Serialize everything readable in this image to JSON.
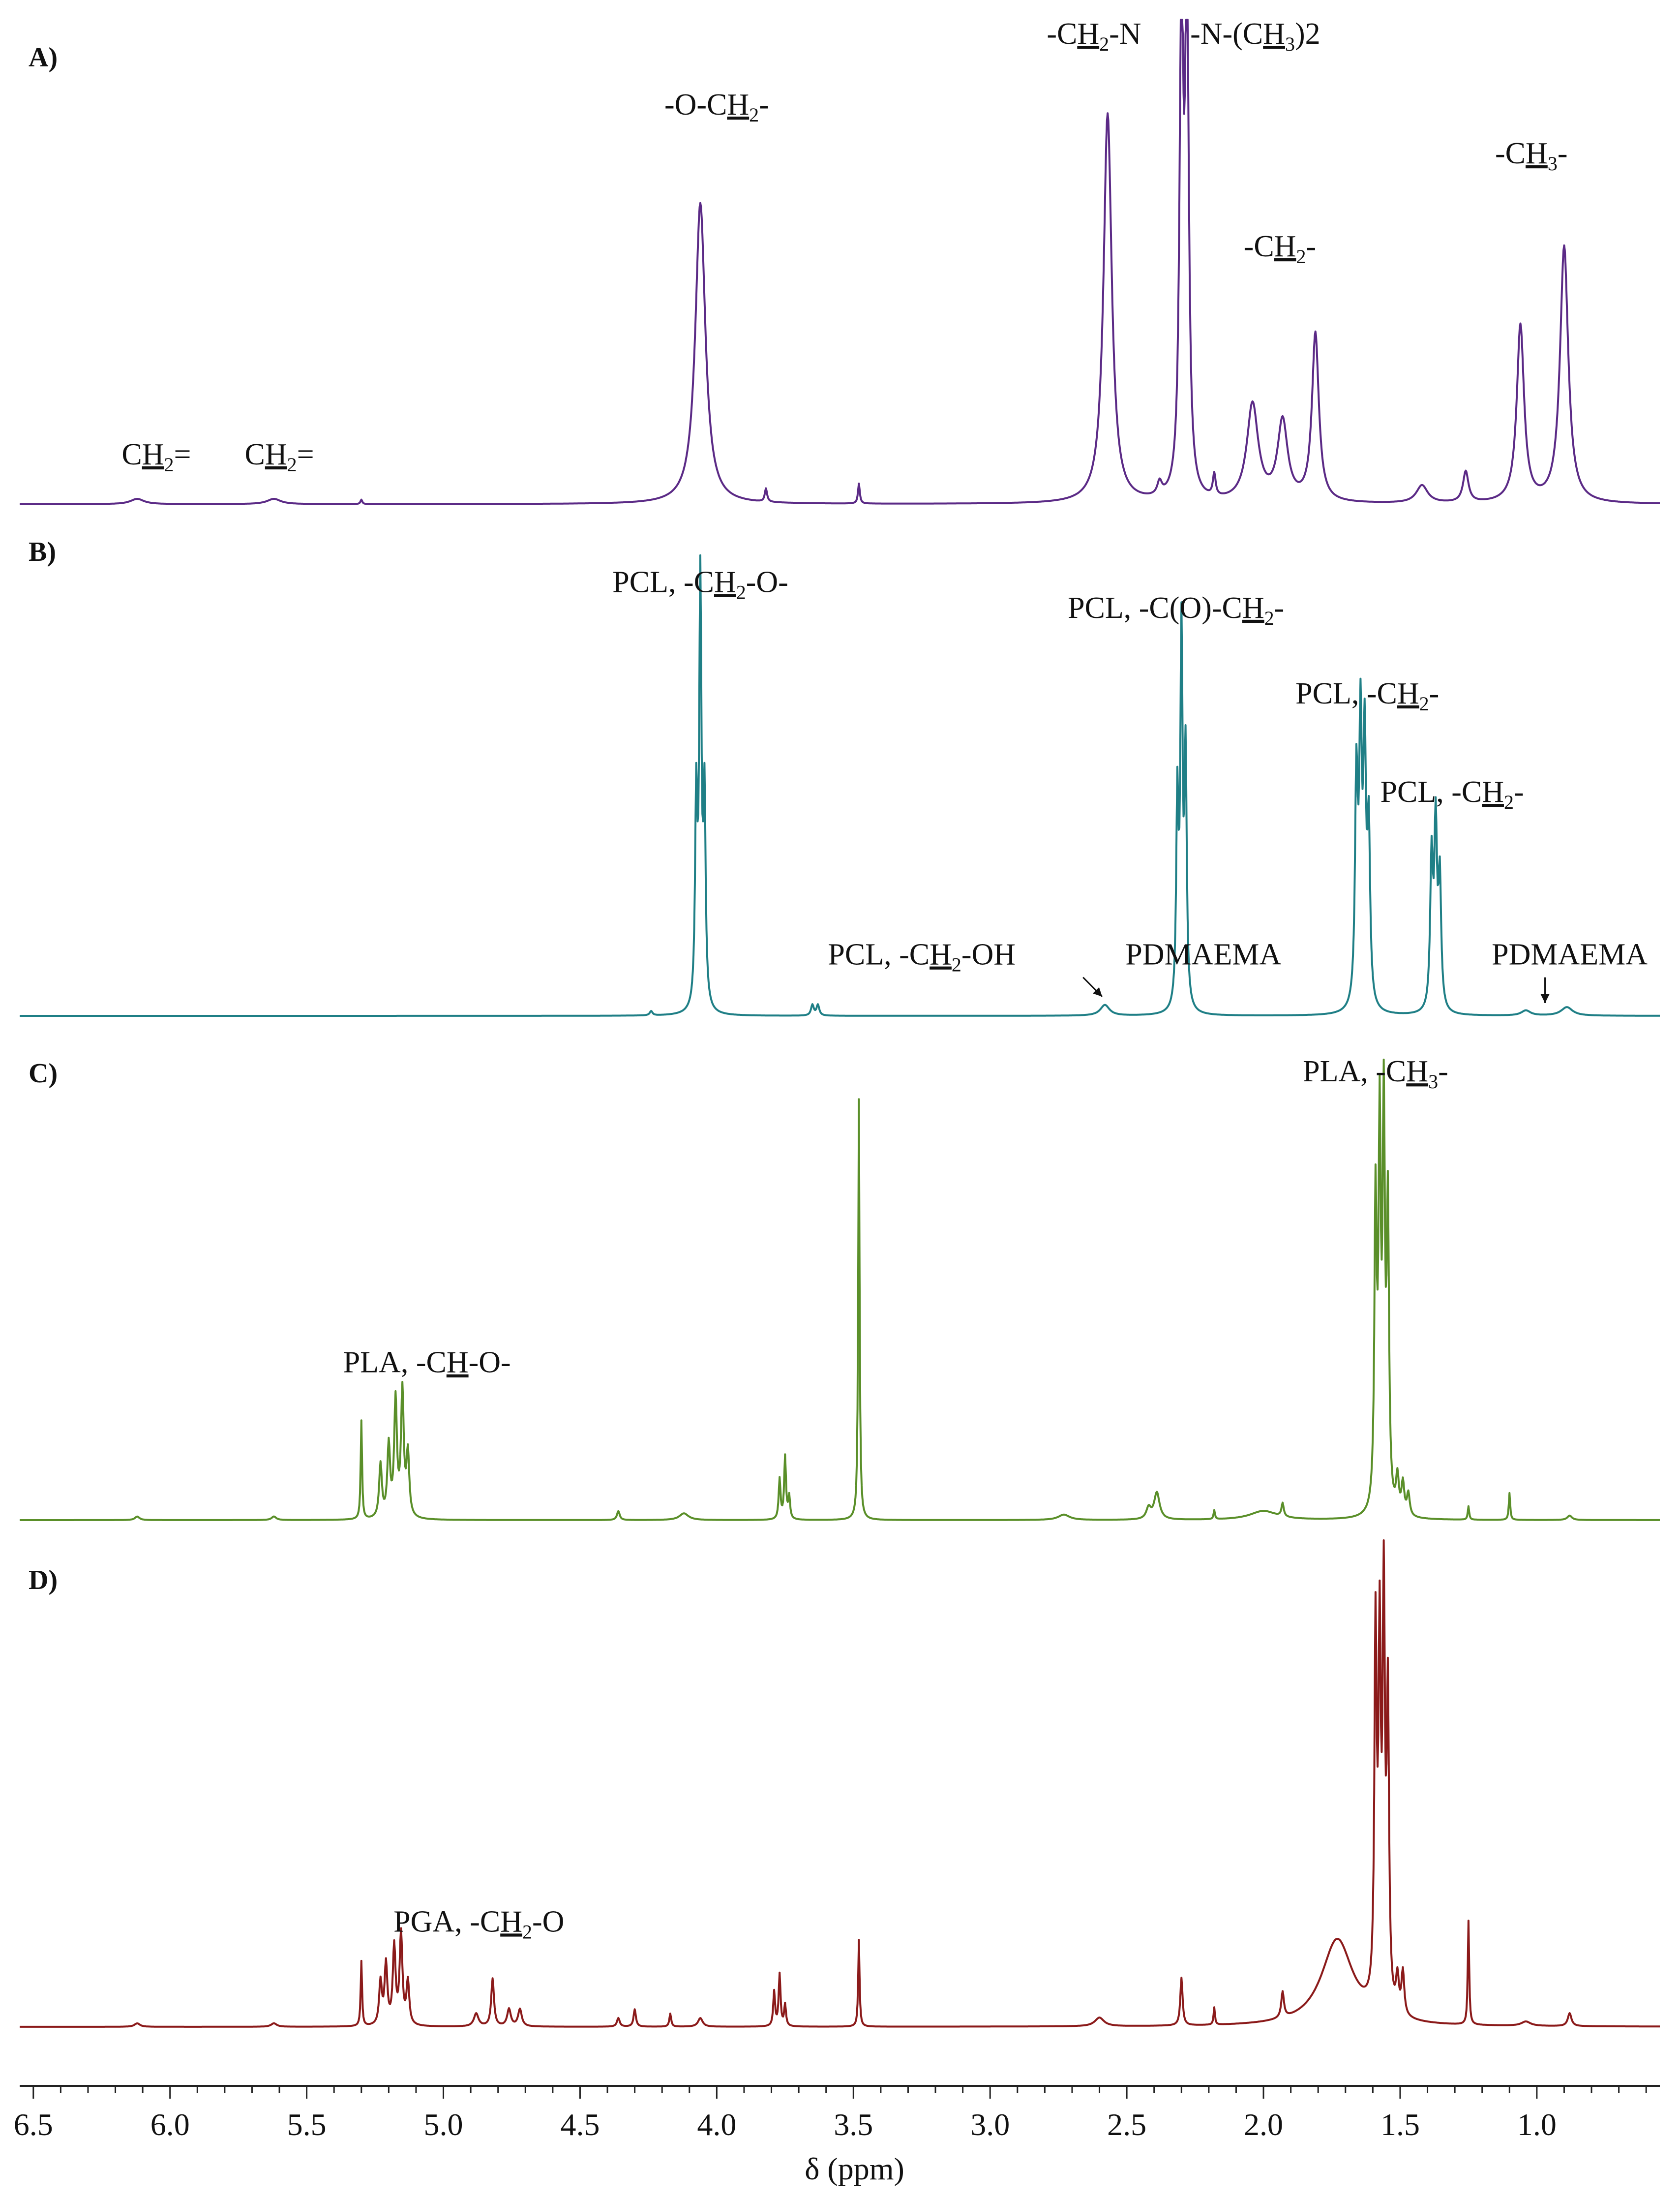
{
  "chart_data": {
    "type": "line",
    "x_axis": {
      "label": "δ (ppm)",
      "range": [
        6.55,
        0.55
      ],
      "reversed": true,
      "ticks": [
        "6.5",
        "6.0",
        "5.5",
        "5.0",
        "4.5",
        "4.0",
        "3.5",
        "3.0",
        "2.5",
        "2.0",
        "1.5",
        "1.0"
      ],
      "tick_values": [
        6.5,
        6.0,
        5.5,
        5.0,
        4.5,
        4.0,
        3.5,
        3.0,
        2.5,
        2.0,
        1.5,
        1.0
      ]
    },
    "grid": false,
    "legend": "none",
    "series": [
      {
        "panel": "A)",
        "color": "#5b2a86",
        "peaks": [
          {
            "ppm": 6.12,
            "height": 0.012,
            "width": 0.03
          },
          {
            "ppm": 5.62,
            "height": 0.012,
            "width": 0.03
          },
          {
            "ppm": 5.3,
            "height": 0.01,
            "width": 0.004
          },
          {
            "ppm": 4.06,
            "height": 0.68,
            "width": 0.022
          },
          {
            "ppm": 3.82,
            "height": 0.03,
            "width": 0.005
          },
          {
            "ppm": 3.48,
            "height": 0.045,
            "width": 0.004
          },
          {
            "ppm": 2.57,
            "height": 0.88,
            "width": 0.018
          },
          {
            "ppm": 2.38,
            "height": 0.03,
            "width": 0.01
          },
          {
            "ppm": 2.3,
            "height": 1.12,
            "width": 0.008
          },
          {
            "ppm": 2.28,
            "height": 1.12,
            "width": 0.008
          },
          {
            "ppm": 2.18,
            "height": 0.05,
            "width": 0.006
          },
          {
            "ppm": 2.04,
            "height": 0.22,
            "width": 0.025
          },
          {
            "ppm": 1.93,
            "height": 0.18,
            "width": 0.022
          },
          {
            "ppm": 1.81,
            "height": 0.38,
            "width": 0.015
          },
          {
            "ppm": 1.42,
            "height": 0.04,
            "width": 0.025
          },
          {
            "ppm": 1.26,
            "height": 0.07,
            "width": 0.012
          },
          {
            "ppm": 1.06,
            "height": 0.4,
            "width": 0.016
          },
          {
            "ppm": 0.9,
            "height": 0.58,
            "width": 0.018
          }
        ],
        "annotations": [
          {
            "ppm": 6.05,
            "y": 0.09,
            "text": "CH",
            "sub": "2",
            "suffix": "=",
            "underline": "H"
          },
          {
            "ppm": 5.6,
            "y": 0.09,
            "text": "CH",
            "sub": "2",
            "suffix": "=",
            "underline": "H"
          },
          {
            "ppm": 4.0,
            "y": 0.88,
            "text": "-O-CH",
            "sub": "2",
            "suffix": "-",
            "underline": "H"
          },
          {
            "ppm": 2.62,
            "y": 1.04,
            "text": "-CH",
            "sub": "2",
            "suffix": "-N",
            "underline": "H"
          },
          {
            "ppm": 2.03,
            "y": 1.04,
            "text": "-N-(CH",
            "sub": "3",
            "suffix": ")2",
            "underline": "H"
          },
          {
            "ppm": 1.94,
            "y": 0.56,
            "text": "-CH",
            "sub": "2",
            "suffix": "-",
            "underline": "H"
          },
          {
            "ppm": 1.02,
            "y": 0.77,
            "text": "-CH",
            "sub": "3",
            "suffix": "-",
            "underline": "H"
          }
        ]
      },
      {
        "panel": "B)",
        "color": "#1f7f86",
        "peaks": [
          {
            "ppm": 4.24,
            "height": 0.01,
            "width": 0.006
          },
          {
            "ppm": 4.075,
            "height": 0.48,
            "width": 0.005
          },
          {
            "ppm": 4.06,
            "height": 0.98,
            "width": 0.005
          },
          {
            "ppm": 4.045,
            "height": 0.48,
            "width": 0.005
          },
          {
            "ppm": 3.65,
            "height": 0.025,
            "width": 0.006
          },
          {
            "ppm": 3.63,
            "height": 0.025,
            "width": 0.006
          },
          {
            "ppm": 2.58,
            "height": 0.025,
            "width": 0.02
          },
          {
            "ppm": 2.315,
            "height": 0.48,
            "width": 0.005
          },
          {
            "ppm": 2.3,
            "height": 0.86,
            "width": 0.005
          },
          {
            "ppm": 2.285,
            "height": 0.58,
            "width": 0.005
          },
          {
            "ppm": 1.66,
            "height": 0.52,
            "width": 0.006
          },
          {
            "ppm": 1.645,
            "height": 0.62,
            "width": 0.006
          },
          {
            "ppm": 1.63,
            "height": 0.58,
            "width": 0.006
          },
          {
            "ppm": 1.615,
            "height": 0.4,
            "width": 0.006
          },
          {
            "ppm": 1.385,
            "height": 0.35,
            "width": 0.006
          },
          {
            "ppm": 1.37,
            "height": 0.42,
            "width": 0.006
          },
          {
            "ppm": 1.355,
            "height": 0.3,
            "width": 0.006
          },
          {
            "ppm": 1.04,
            "height": 0.012,
            "width": 0.02
          },
          {
            "ppm": 0.89,
            "height": 0.02,
            "width": 0.025
          }
        ],
        "annotations": [
          {
            "ppm": 4.06,
            "y": 0.99,
            "text": "PCL, -CH",
            "sub": "2",
            "suffix": "-O-",
            "underline": "H"
          },
          {
            "ppm": 3.25,
            "y": 0.12,
            "text": "PCL, -CH",
            "sub": "2",
            "suffix": "-OH",
            "underline": "H"
          },
          {
            "ppm": 2.32,
            "y": 0.93,
            "text": "PCL, -C(O)-CH",
            "sub": "2",
            "suffix": "-",
            "underline": "H"
          },
          {
            "ppm": 2.22,
            "y": 0.12,
            "text": "PDMAEMA"
          },
          {
            "ppm": 1.62,
            "y": 0.73,
            "text": "PCL, -CH",
            "sub": "2",
            "suffix": "-",
            "underline": "H"
          },
          {
            "ppm": 1.31,
            "y": 0.5,
            "text": "PCL, -CH",
            "sub": "2",
            "suffix": "-",
            "underline": "H"
          },
          {
            "ppm": 0.88,
            "y": 0.12,
            "text": "PDMAEMA"
          }
        ],
        "arrows": [
          {
            "from_ppm": 2.66,
            "from_y": 0.09,
            "to_ppm": 2.59,
            "to_y": 0.045
          },
          {
            "from_ppm": 0.97,
            "from_y": 0.09,
            "to_ppm": 0.97,
            "to_y": 0.03
          }
        ]
      },
      {
        "panel": "C)",
        "color": "#5a8f29",
        "peaks": [
          {
            "ppm": 6.12,
            "height": 0.008,
            "width": 0.01
          },
          {
            "ppm": 5.62,
            "height": 0.008,
            "width": 0.01
          },
          {
            "ppm": 5.3,
            "height": 0.22,
            "width": 0.003
          },
          {
            "ppm": 5.23,
            "height": 0.12,
            "width": 0.006
          },
          {
            "ppm": 5.2,
            "height": 0.16,
            "width": 0.006
          },
          {
            "ppm": 5.175,
            "height": 0.26,
            "width": 0.006
          },
          {
            "ppm": 5.15,
            "height": 0.28,
            "width": 0.006
          },
          {
            "ppm": 5.13,
            "height": 0.14,
            "width": 0.006
          },
          {
            "ppm": 4.36,
            "height": 0.02,
            "width": 0.006
          },
          {
            "ppm": 4.12,
            "height": 0.015,
            "width": 0.02
          },
          {
            "ppm": 3.77,
            "height": 0.09,
            "width": 0.004
          },
          {
            "ppm": 3.75,
            "height": 0.14,
            "width": 0.004
          },
          {
            "ppm": 3.735,
            "height": 0.05,
            "width": 0.004
          },
          {
            "ppm": 3.48,
            "height": 0.94,
            "width": 0.003
          },
          {
            "ppm": 2.73,
            "height": 0.012,
            "width": 0.025
          },
          {
            "ppm": 2.42,
            "height": 0.025,
            "width": 0.01
          },
          {
            "ppm": 2.39,
            "height": 0.06,
            "width": 0.012
          },
          {
            "ppm": 2.18,
            "height": 0.02,
            "width": 0.003
          },
          {
            "ppm": 2.0,
            "height": 0.02,
            "width": 0.06
          },
          {
            "ppm": 1.93,
            "height": 0.03,
            "width": 0.005
          },
          {
            "ppm": 1.59,
            "height": 0.68,
            "width": 0.005
          },
          {
            "ppm": 1.575,
            "height": 0.82,
            "width": 0.005
          },
          {
            "ppm": 1.56,
            "height": 0.86,
            "width": 0.005
          },
          {
            "ppm": 1.545,
            "height": 0.66,
            "width": 0.005
          },
          {
            "ppm": 1.51,
            "height": 0.08,
            "width": 0.006
          },
          {
            "ppm": 1.49,
            "height": 0.07,
            "width": 0.006
          },
          {
            "ppm": 1.47,
            "height": 0.05,
            "width": 0.006
          },
          {
            "ppm": 1.25,
            "height": 0.03,
            "width": 0.003
          },
          {
            "ppm": 1.1,
            "height": 0.06,
            "width": 0.003
          },
          {
            "ppm": 0.88,
            "height": 0.01,
            "width": 0.01
          }
        ],
        "annotations": [
          {
            "ppm": 5.06,
            "y": 0.33,
            "text": "PLA, -CH",
            "suffix": "-O-",
            "underline_char": "H"
          },
          {
            "ppm": 1.59,
            "y": 0.98,
            "text": "PLA, -CH",
            "sub": "3",
            "suffix": "-",
            "underline": "H"
          }
        ]
      },
      {
        "panel": "D)",
        "color": "#8b1a1a",
        "peaks": [
          {
            "ppm": 6.12,
            "height": 0.008,
            "width": 0.012
          },
          {
            "ppm": 5.62,
            "height": 0.008,
            "width": 0.012
          },
          {
            "ppm": 5.3,
            "height": 0.15,
            "width": 0.003
          },
          {
            "ppm": 5.23,
            "height": 0.1,
            "width": 0.006
          },
          {
            "ppm": 5.21,
            "height": 0.14,
            "width": 0.006
          },
          {
            "ppm": 5.18,
            "height": 0.18,
            "width": 0.006
          },
          {
            "ppm": 5.155,
            "height": 0.21,
            "width": 0.006
          },
          {
            "ppm": 5.13,
            "height": 0.1,
            "width": 0.006
          },
          {
            "ppm": 4.88,
            "height": 0.03,
            "width": 0.01
          },
          {
            "ppm": 4.82,
            "height": 0.11,
            "width": 0.006
          },
          {
            "ppm": 4.76,
            "height": 0.04,
            "width": 0.008
          },
          {
            "ppm": 4.72,
            "height": 0.04,
            "width": 0.008
          },
          {
            "ppm": 4.36,
            "height": 0.02,
            "width": 0.006
          },
          {
            "ppm": 4.3,
            "height": 0.04,
            "width": 0.005
          },
          {
            "ppm": 4.17,
            "height": 0.03,
            "width": 0.004
          },
          {
            "ppm": 4.06,
            "height": 0.02,
            "width": 0.01
          },
          {
            "ppm": 3.79,
            "height": 0.08,
            "width": 0.004
          },
          {
            "ppm": 3.77,
            "height": 0.12,
            "width": 0.004
          },
          {
            "ppm": 3.75,
            "height": 0.05,
            "width": 0.004
          },
          {
            "ppm": 3.48,
            "height": 0.2,
            "width": 0.003
          },
          {
            "ppm": 2.6,
            "height": 0.02,
            "width": 0.02
          },
          {
            "ppm": 2.3,
            "height": 0.11,
            "width": 0.005
          },
          {
            "ppm": 2.18,
            "height": 0.04,
            "width": 0.003
          },
          {
            "ppm": 1.93,
            "height": 0.06,
            "width": 0.006
          },
          {
            "ppm": 1.73,
            "height": 0.2,
            "width": 0.07
          },
          {
            "ppm": 1.59,
            "height": 0.85,
            "width": 0.005
          },
          {
            "ppm": 1.575,
            "height": 0.8,
            "width": 0.005
          },
          {
            "ppm": 1.56,
            "height": 0.92,
            "width": 0.005
          },
          {
            "ppm": 1.545,
            "height": 0.7,
            "width": 0.005
          },
          {
            "ppm": 1.51,
            "height": 0.08,
            "width": 0.006
          },
          {
            "ppm": 1.49,
            "height": 0.1,
            "width": 0.006
          },
          {
            "ppm": 1.25,
            "height": 0.24,
            "width": 0.003
          },
          {
            "ppm": 1.04,
            "height": 0.01,
            "width": 0.02
          },
          {
            "ppm": 0.88,
            "height": 0.03,
            "width": 0.008
          }
        ],
        "annotations": [
          {
            "ppm": 4.87,
            "y": 0.22,
            "text": "PGA, -CH",
            "sub": "2",
            "suffix": "-O",
            "underline": "H"
          }
        ]
      }
    ]
  }
}
